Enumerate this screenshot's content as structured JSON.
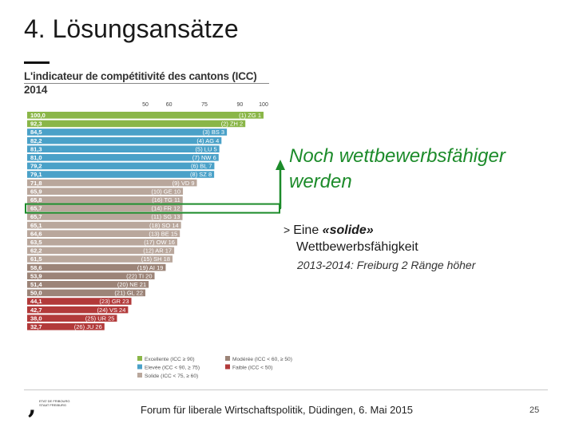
{
  "slide": {
    "title": "4. Lösungsansätze",
    "callout_title_line1": "Noch wettbewerbsfähiger",
    "callout_title_line2": "werden",
    "bullet_marker": ">",
    "bullet_prefix": "Eine",
    "bullet_emphasis": "«solide»",
    "bullet_line2": "Wettbewerbsfähigkeit",
    "subnote": "2013-2014: Freiburg 2 Ränge höher",
    "footer": "Forum für liberale Wirtschaftspolitik, Düdingen, 6. Mai 2015",
    "page_number": "25",
    "logo_line1": "ETAT DE FRIBOURG",
    "logo_line2": "STAAT FREIBURG"
  },
  "colors": {
    "excellente": "#8ab648",
    "elevee": "#4aa1c8",
    "moderee": "#9c8478",
    "solide": "#b9a79c",
    "faible": "#b23a3a",
    "callout_green": "#1c8b2a",
    "axis_rule": "#c8c8c8"
  },
  "chart_data": {
    "type": "bar",
    "orientation": "horizontal",
    "title": "L'indicateur de compétitivité des cantons (ICC)",
    "subtitle": "2014",
    "x_ticks": [
      50,
      60,
      75,
      90,
      100
    ],
    "xlim": [
      0,
      100
    ],
    "rows": [
      {
        "value": 100.0,
        "value_label": "100,0",
        "rank": "(1)",
        "canton": "ZG",
        "rank2014": 1,
        "class": "excellente"
      },
      {
        "value": 92.3,
        "value_label": "92,3",
        "rank": "(2)",
        "canton": "ZH",
        "rank2014": 2,
        "class": "excellente"
      },
      {
        "value": 84.5,
        "value_label": "84,5",
        "rank": "(3)",
        "canton": "BS",
        "rank2014": 3,
        "class": "elevee"
      },
      {
        "value": 82.2,
        "value_label": "82,2",
        "rank": "(4)",
        "canton": "AG",
        "rank2014": 4,
        "class": "elevee"
      },
      {
        "value": 81.3,
        "value_label": "81,3",
        "rank": "(5)",
        "canton": "LU",
        "rank2014": 5,
        "class": "elevee"
      },
      {
        "value": 81.0,
        "value_label": "81,0",
        "rank": "(7)",
        "canton": "NW",
        "rank2014": 6,
        "class": "elevee"
      },
      {
        "value": 79.2,
        "value_label": "79,2",
        "rank": "(6)",
        "canton": "BL",
        "rank2014": 7,
        "class": "elevee"
      },
      {
        "value": 79.1,
        "value_label": "79,1",
        "rank": "(8)",
        "canton": "SZ",
        "rank2014": 8,
        "class": "elevee"
      },
      {
        "value": 71.8,
        "value_label": "71,8",
        "rank": "(9)",
        "canton": "VD",
        "rank2014": 9,
        "class": "solide"
      },
      {
        "value": 65.9,
        "value_label": "65,9",
        "rank": "(10)",
        "canton": "GE",
        "rank2014": 10,
        "class": "solide"
      },
      {
        "value": 65.8,
        "value_label": "65,8",
        "rank": "(16)",
        "canton": "TG",
        "rank2014": 11,
        "class": "solide"
      },
      {
        "value": 65.7,
        "value_label": "65,7",
        "rank": "(14)",
        "canton": "FR",
        "rank2014": 12,
        "class": "solide",
        "highlight": true
      },
      {
        "value": 65.7,
        "value_label": "65,7",
        "rank": "(11)",
        "canton": "SG",
        "rank2014": 13,
        "class": "solide"
      },
      {
        "value": 65.1,
        "value_label": "65,1",
        "rank": "(18)",
        "canton": "SO",
        "rank2014": 14,
        "class": "solide"
      },
      {
        "value": 64.6,
        "value_label": "64,6",
        "rank": "(13)",
        "canton": "BE",
        "rank2014": 15,
        "class": "solide"
      },
      {
        "value": 63.5,
        "value_label": "63,5",
        "rank": "(17)",
        "canton": "OW",
        "rank2014": 16,
        "class": "solide"
      },
      {
        "value": 62.2,
        "value_label": "62,2",
        "rank": "(12)",
        "canton": "AR",
        "rank2014": 17,
        "class": "solide"
      },
      {
        "value": 61.5,
        "value_label": "61,5",
        "rank": "(15)",
        "canton": "SH",
        "rank2014": 18,
        "class": "solide"
      },
      {
        "value": 58.6,
        "value_label": "58,6",
        "rank": "(19)",
        "canton": "AI",
        "rank2014": 19,
        "class": "moderee"
      },
      {
        "value": 53.9,
        "value_label": "53,9",
        "rank": "(22)",
        "canton": "TI",
        "rank2014": 20,
        "class": "moderee"
      },
      {
        "value": 51.4,
        "value_label": "51,4",
        "rank": "(20)",
        "canton": "NE",
        "rank2014": 21,
        "class": "moderee"
      },
      {
        "value": 50.0,
        "value_label": "50,0",
        "rank": "(21)",
        "canton": "GL",
        "rank2014": 22,
        "class": "moderee"
      },
      {
        "value": 44.1,
        "value_label": "44,1",
        "rank": "(23)",
        "canton": "GR",
        "rank2014": 23,
        "class": "faible"
      },
      {
        "value": 42.7,
        "value_label": "42,7",
        "rank": "(24)",
        "canton": "VS",
        "rank2014": 24,
        "class": "faible"
      },
      {
        "value": 38.0,
        "value_label": "38,0",
        "rank": "(25)",
        "canton": "UR",
        "rank2014": 25,
        "class": "faible"
      },
      {
        "value": 32.7,
        "value_label": "32,7",
        "rank": "(26)",
        "canton": "JU",
        "rank2014": 26,
        "class": "faible"
      }
    ],
    "legend": [
      {
        "class": "excellente",
        "label": "Excellente (ICC ≥ 90)"
      },
      {
        "class": "moderee",
        "label": "Modérée (ICC < 60, ≥ 50)"
      },
      {
        "class": "elevee",
        "label": "Elevée (ICC < 90, ≥ 75)"
      },
      {
        "class": "faible",
        "label": "Faible (ICC < 50)"
      },
      {
        "class": "solide",
        "label": "Solide (ICC < 75, ≥ 60)"
      }
    ]
  }
}
